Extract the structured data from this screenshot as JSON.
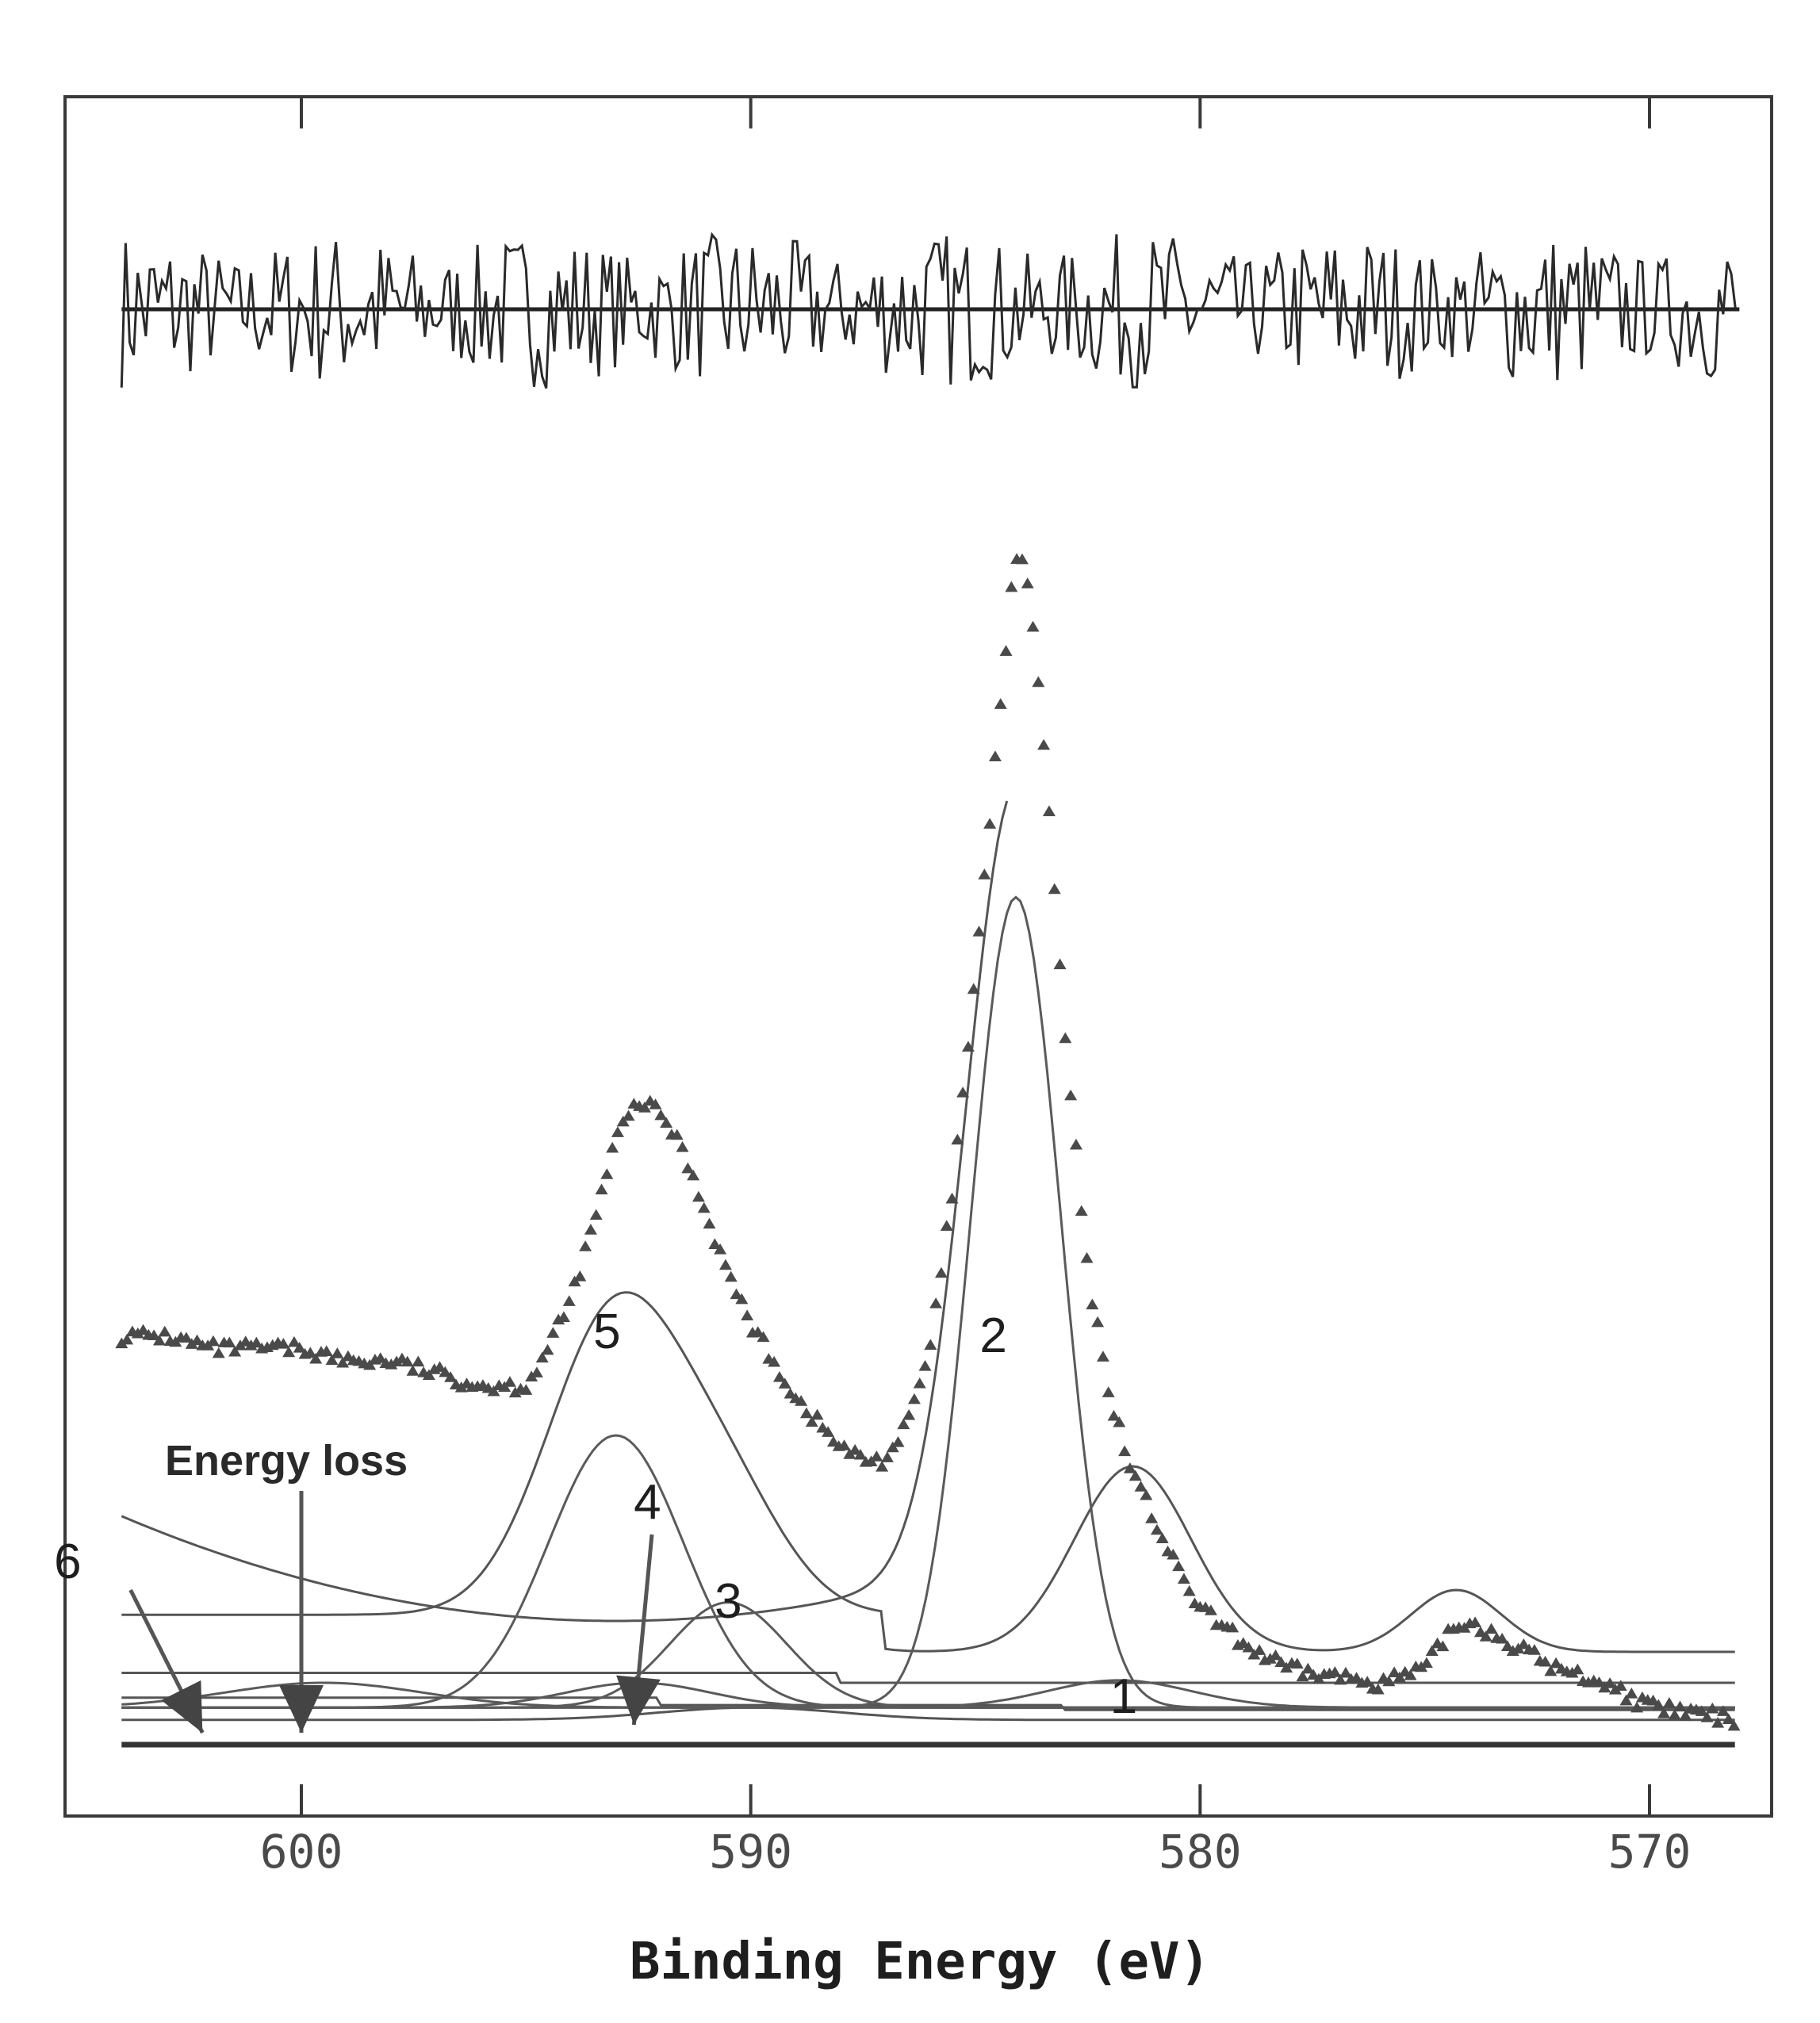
{
  "chart_data": {
    "type": "line",
    "xlabel": "Binding Energy (eV)",
    "x_reversed": true,
    "xlim": [
      605,
      568
    ],
    "xticks": [
      600,
      590,
      580,
      570
    ],
    "ylim": [
      0,
      1
    ],
    "grid": false,
    "residual": {
      "x_range": [
        604,
        568
      ],
      "baseline": 0.0
    },
    "measured": {
      "marker": "triangle",
      "points": [
        [
          604,
          0.33
        ],
        [
          603,
          0.33
        ],
        [
          602,
          0.32
        ],
        [
          601,
          0.32
        ],
        [
          600,
          0.32
        ],
        [
          599,
          0.31
        ],
        [
          598,
          0.31
        ],
        [
          597,
          0.3
        ],
        [
          596,
          0.29
        ],
        [
          595,
          0.29
        ],
        [
          594.5,
          0.32
        ],
        [
          594,
          0.36
        ],
        [
          593.5,
          0.42
        ],
        [
          593,
          0.49
        ],
        [
          592.5,
          0.52
        ],
        [
          592,
          0.51
        ],
        [
          591.5,
          0.48
        ],
        [
          591,
          0.43
        ],
        [
          590.5,
          0.38
        ],
        [
          590,
          0.34
        ],
        [
          589.5,
          0.31
        ],
        [
          589,
          0.28
        ],
        [
          588.5,
          0.26
        ],
        [
          588,
          0.24
        ],
        [
          587.5,
          0.23
        ],
        [
          587,
          0.23
        ],
        [
          586.5,
          0.26
        ],
        [
          586,
          0.32
        ],
        [
          585.5,
          0.45
        ],
        [
          585,
          0.62
        ],
        [
          584.5,
          0.82
        ],
        [
          584.2,
          0.93
        ],
        [
          584,
          0.97
        ],
        [
          583.8,
          0.93
        ],
        [
          583.5,
          0.82
        ],
        [
          583,
          0.57
        ],
        [
          582.5,
          0.38
        ],
        [
          582,
          0.28
        ],
        [
          581.5,
          0.22
        ],
        [
          581,
          0.18
        ],
        [
          580.5,
          0.14
        ],
        [
          580,
          0.11
        ],
        [
          579,
          0.08
        ],
        [
          578,
          0.06
        ],
        [
          577,
          0.055
        ],
        [
          576,
          0.05
        ],
        [
          575,
          0.06
        ],
        [
          574.5,
          0.09
        ],
        [
          574,
          0.1
        ],
        [
          573.5,
          0.09
        ],
        [
          573,
          0.08
        ],
        [
          572,
          0.06
        ],
        [
          571,
          0.05
        ],
        [
          570,
          0.03
        ],
        [
          569,
          0.025
        ],
        [
          568,
          0.02
        ]
      ]
    },
    "components": [
      {
        "label": "1",
        "center": 581.8,
        "height": 0.022,
        "width": 1.6
      },
      {
        "label": "2",
        "center": 584.1,
        "height": 0.655,
        "width": 1.0
      },
      {
        "label": "3",
        "center": 590.5,
        "height": 0.085,
        "width": 1.3
      },
      {
        "label": "4",
        "center": 592.5,
        "height": 0.02,
        "width": 1.6
      },
      {
        "label": "5",
        "center": 593.0,
        "height": 0.22,
        "width": 1.5
      },
      {
        "label": "6",
        "center": 599.5,
        "height": 0.02,
        "width": 2.2
      }
    ],
    "annotations": [
      {
        "text": "Energy loss",
        "points_to": 600
      },
      {
        "text": "6",
        "points_to": 602.5
      },
      {
        "text": "4",
        "points_to": 592.5
      }
    ]
  }
}
